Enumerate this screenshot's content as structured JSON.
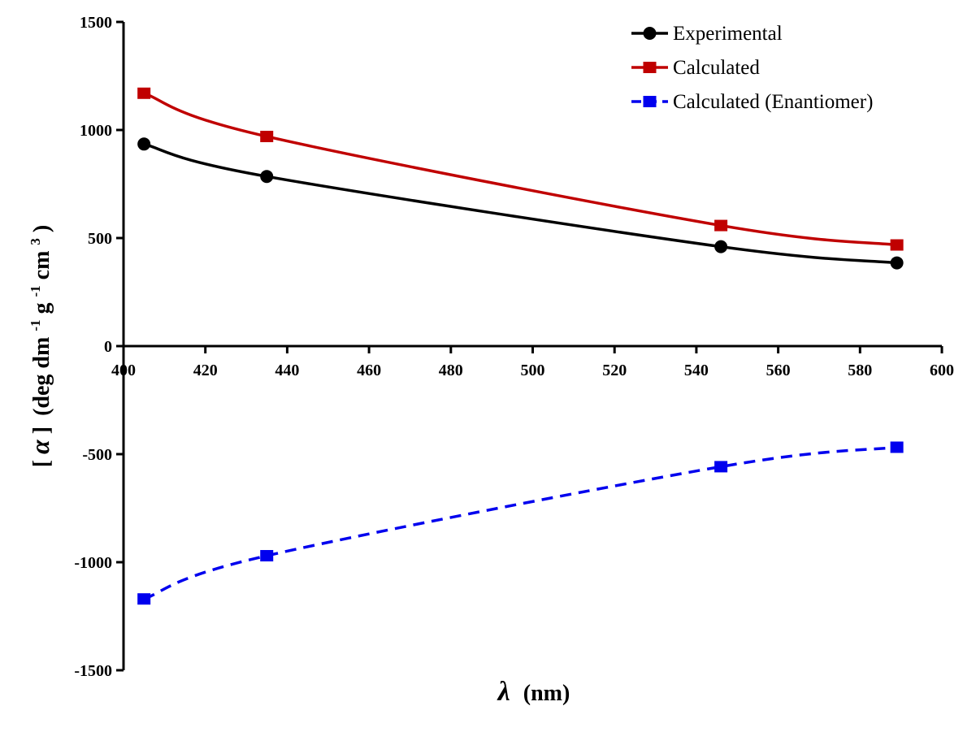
{
  "chart_data": {
    "type": "line",
    "title": "",
    "xlabel": {
      "symbol": "λ",
      "unit": "(nm)"
    },
    "ylabel": {
      "open": "[",
      "symbol": "α",
      "close": "]",
      "text": "(deg dm",
      "sup1": "-1",
      "mid": " g",
      "sup2": "-1",
      "mid2": " cm",
      "sup3": "3",
      "end": ")"
    },
    "xlim": [
      400,
      600
    ],
    "ylim": [
      -1500,
      1500
    ],
    "x_ticks": [
      400,
      420,
      440,
      460,
      480,
      500,
      520,
      540,
      560,
      580,
      600
    ],
    "y_ticks": [
      -1500,
      -1000,
      -500,
      0,
      500,
      1000,
      1500
    ],
    "legend_position": "top-right",
    "grid": false,
    "series": [
      {
        "name": "Experimental",
        "color": "#000000",
        "marker": "circle",
        "dash": "solid",
        "x": [
          405,
          435,
          546,
          589
        ],
        "y": [
          935,
          785,
          460,
          385
        ]
      },
      {
        "name": "Calculated",
        "color": "#c00000",
        "marker": "square",
        "dash": "solid",
        "x": [
          405,
          435,
          546,
          589
        ],
        "y": [
          1170,
          970,
          558,
          468
        ]
      },
      {
        "name": "Calculated (Enantiomer)",
        "color": "#0000ee",
        "marker": "square",
        "dash": "dashed",
        "x": [
          405,
          435,
          546,
          589
        ],
        "y": [
          -1170,
          -970,
          -558,
          -468
        ]
      }
    ]
  }
}
